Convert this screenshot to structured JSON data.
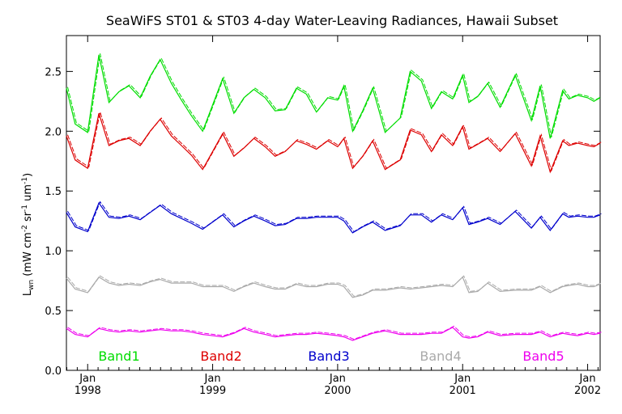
{
  "chart_data": {
    "type": "line",
    "title": "SeaWiFS ST01 & ST03 4-day Water-Leaving Radiances, Hawaii Subset",
    "ylabel": {
      "main": "L",
      "sub": "wn",
      "units_pre": " (mW cm",
      "units_exp1": "-2",
      "units_mid": " sr",
      "units_exp2": "-1",
      "units_post": " um",
      "units_exp3": "-1",
      "units_close": ")"
    },
    "xlim": [
      1997.83,
      2002.1
    ],
    "ylim": [
      0.0,
      2.8
    ],
    "yticks": [
      "0.0",
      "0.5",
      "1.0",
      "1.5",
      "2.0",
      "2.5"
    ],
    "ytick_values": [
      0.0,
      0.5,
      1.0,
      1.5,
      2.0,
      2.5
    ],
    "xticks": [
      {
        "x": 1998.0,
        "month": "Jan",
        "year": "1998"
      },
      {
        "x": 1999.0,
        "month": "Jan",
        "year": "1999"
      },
      {
        "x": 2000.0,
        "month": "Jan",
        "year": "2000"
      },
      {
        "x": 2001.0,
        "month": "Jan",
        "year": "2001"
      },
      {
        "x": 2002.0,
        "month": "Jan",
        "year": "2002"
      }
    ],
    "legend_placement": "bottom",
    "series": [
      {
        "name": "Band1",
        "color": "#00dd00",
        "x": [
          1997.83,
          1997.9,
          1998.0,
          1998.09,
          1998.17,
          1998.25,
          1998.33,
          1998.42,
          1998.5,
          1998.58,
          1998.67,
          1998.75,
          1998.83,
          1998.92,
          1999.08,
          1999.17,
          1999.25,
          1999.33,
          1999.42,
          1999.5,
          1999.58,
          1999.67,
          1999.75,
          1999.83,
          1999.92,
          2000.0,
          2000.05,
          2000.12,
          2000.2,
          2000.28,
          2000.38,
          2000.5,
          2000.58,
          2000.67,
          2000.75,
          2000.83,
          2000.92,
          2001.0,
          2001.05,
          2001.12,
          2001.2,
          2001.3,
          2001.42,
          2001.55,
          2001.62,
          2001.7,
          2001.8,
          2001.85,
          2001.92,
          2002.0,
          2002.05,
          2002.1
        ],
        "values": [
          2.36,
          2.06,
          1.99,
          2.64,
          2.24,
          2.33,
          2.38,
          2.28,
          2.46,
          2.6,
          2.4,
          2.26,
          2.13,
          2.0,
          2.44,
          2.15,
          2.28,
          2.35,
          2.28,
          2.17,
          2.18,
          2.36,
          2.31,
          2.16,
          2.28,
          2.26,
          2.38,
          2.0,
          2.17,
          2.36,
          1.99,
          2.11,
          2.5,
          2.42,
          2.19,
          2.33,
          2.27,
          2.47,
          2.24,
          2.29,
          2.4,
          2.2,
          2.47,
          2.09,
          2.38,
          1.94,
          2.34,
          2.27,
          2.3,
          2.28,
          2.25,
          2.28
        ]
      },
      {
        "name": "Band2",
        "color": "#dd0000",
        "x": [
          1997.83,
          1997.9,
          1998.0,
          1998.09,
          1998.17,
          1998.25,
          1998.33,
          1998.42,
          1998.5,
          1998.58,
          1998.67,
          1998.75,
          1998.83,
          1998.92,
          1999.08,
          1999.17,
          1999.25,
          1999.33,
          1999.42,
          1999.5,
          1999.58,
          1999.67,
          1999.75,
          1999.83,
          1999.92,
          2000.0,
          2000.05,
          2000.12,
          2000.2,
          2000.28,
          2000.38,
          2000.5,
          2000.58,
          2000.67,
          2000.75,
          2000.83,
          2000.92,
          2001.0,
          2001.05,
          2001.12,
          2001.2,
          2001.3,
          2001.42,
          2001.55,
          2001.62,
          2001.7,
          2001.8,
          2001.85,
          2001.92,
          2002.0,
          2002.05,
          2002.1
        ],
        "values": [
          1.96,
          1.76,
          1.69,
          2.15,
          1.88,
          1.92,
          1.94,
          1.88,
          2.0,
          2.1,
          1.96,
          1.88,
          1.8,
          1.68,
          1.98,
          1.79,
          1.86,
          1.94,
          1.87,
          1.79,
          1.83,
          1.92,
          1.89,
          1.85,
          1.92,
          1.87,
          1.94,
          1.69,
          1.79,
          1.92,
          1.68,
          1.76,
          2.01,
          1.97,
          1.83,
          1.97,
          1.88,
          2.04,
          1.85,
          1.89,
          1.94,
          1.83,
          1.98,
          1.71,
          1.96,
          1.66,
          1.92,
          1.88,
          1.9,
          1.88,
          1.87,
          1.9
        ]
      },
      {
        "name": "Band3",
        "color": "#0000cc",
        "x": [
          1997.83,
          1997.9,
          1998.0,
          1998.09,
          1998.17,
          1998.25,
          1998.33,
          1998.42,
          1998.5,
          1998.58,
          1998.67,
          1998.75,
          1998.83,
          1998.92,
          1999.08,
          1999.17,
          1999.25,
          1999.33,
          1999.42,
          1999.5,
          1999.58,
          1999.67,
          1999.75,
          1999.83,
          1999.92,
          2000.0,
          2000.05,
          2000.12,
          2000.2,
          2000.28,
          2000.38,
          2000.5,
          2000.58,
          2000.67,
          2000.75,
          2000.83,
          2000.92,
          2001.0,
          2001.05,
          2001.12,
          2001.2,
          2001.3,
          2001.42,
          2001.55,
          2001.62,
          2001.7,
          2001.8,
          2001.85,
          2001.92,
          2002.0,
          2002.05,
          2002.1
        ],
        "values": [
          1.32,
          1.2,
          1.16,
          1.4,
          1.28,
          1.27,
          1.29,
          1.26,
          1.32,
          1.38,
          1.31,
          1.27,
          1.23,
          1.18,
          1.3,
          1.2,
          1.25,
          1.29,
          1.25,
          1.21,
          1.22,
          1.27,
          1.27,
          1.28,
          1.28,
          1.28,
          1.25,
          1.15,
          1.2,
          1.24,
          1.17,
          1.21,
          1.3,
          1.3,
          1.24,
          1.3,
          1.26,
          1.36,
          1.22,
          1.24,
          1.27,
          1.22,
          1.33,
          1.19,
          1.28,
          1.17,
          1.31,
          1.28,
          1.29,
          1.28,
          1.28,
          1.3
        ]
      },
      {
        "name": "Band4",
        "color": "#aaaaaa",
        "x": [
          1997.83,
          1997.9,
          1998.0,
          1998.09,
          1998.17,
          1998.25,
          1998.33,
          1998.42,
          1998.5,
          1998.58,
          1998.67,
          1998.75,
          1998.83,
          1998.92,
          1999.08,
          1999.17,
          1999.25,
          1999.33,
          1999.42,
          1999.5,
          1999.58,
          1999.67,
          1999.75,
          1999.83,
          1999.92,
          2000.0,
          2000.05,
          2000.12,
          2000.2,
          2000.28,
          2000.38,
          2000.5,
          2000.58,
          2000.67,
          2000.75,
          2000.83,
          2000.92,
          2001.0,
          2001.05,
          2001.12,
          2001.2,
          2001.3,
          2001.42,
          2001.55,
          2001.62,
          2001.7,
          2001.8,
          2001.85,
          2001.92,
          2002.0,
          2002.05,
          2002.1
        ],
        "values": [
          0.77,
          0.68,
          0.65,
          0.78,
          0.73,
          0.71,
          0.72,
          0.71,
          0.74,
          0.76,
          0.73,
          0.73,
          0.73,
          0.7,
          0.7,
          0.66,
          0.7,
          0.73,
          0.7,
          0.68,
          0.68,
          0.72,
          0.7,
          0.7,
          0.72,
          0.72,
          0.7,
          0.61,
          0.63,
          0.67,
          0.67,
          0.69,
          0.68,
          0.69,
          0.7,
          0.71,
          0.7,
          0.78,
          0.65,
          0.66,
          0.73,
          0.66,
          0.67,
          0.67,
          0.7,
          0.65,
          0.7,
          0.71,
          0.72,
          0.7,
          0.7,
          0.72
        ]
      },
      {
        "name": "Band5",
        "color": "#ee00ee",
        "x": [
          1997.83,
          1997.9,
          1998.0,
          1998.09,
          1998.17,
          1998.25,
          1998.33,
          1998.42,
          1998.5,
          1998.58,
          1998.67,
          1998.75,
          1998.83,
          1998.92,
          1999.08,
          1999.17,
          1999.25,
          1999.33,
          1999.42,
          1999.5,
          1999.58,
          1999.67,
          1999.75,
          1999.83,
          1999.92,
          2000.0,
          2000.05,
          2000.12,
          2000.2,
          2000.28,
          2000.38,
          2000.5,
          2000.58,
          2000.67,
          2000.75,
          2000.83,
          2000.92,
          2001.0,
          2001.05,
          2001.12,
          2001.2,
          2001.3,
          2001.42,
          2001.55,
          2001.62,
          2001.7,
          2001.8,
          2001.85,
          2001.92,
          2002.0,
          2002.05,
          2002.1
        ],
        "values": [
          0.35,
          0.3,
          0.28,
          0.35,
          0.33,
          0.32,
          0.33,
          0.32,
          0.33,
          0.34,
          0.33,
          0.33,
          0.32,
          0.3,
          0.28,
          0.31,
          0.35,
          0.32,
          0.3,
          0.28,
          0.29,
          0.3,
          0.3,
          0.31,
          0.3,
          0.29,
          0.28,
          0.25,
          0.28,
          0.31,
          0.33,
          0.3,
          0.3,
          0.3,
          0.31,
          0.31,
          0.36,
          0.28,
          0.27,
          0.28,
          0.32,
          0.29,
          0.3,
          0.3,
          0.32,
          0.28,
          0.31,
          0.3,
          0.29,
          0.31,
          0.3,
          0.31
        ]
      }
    ]
  }
}
